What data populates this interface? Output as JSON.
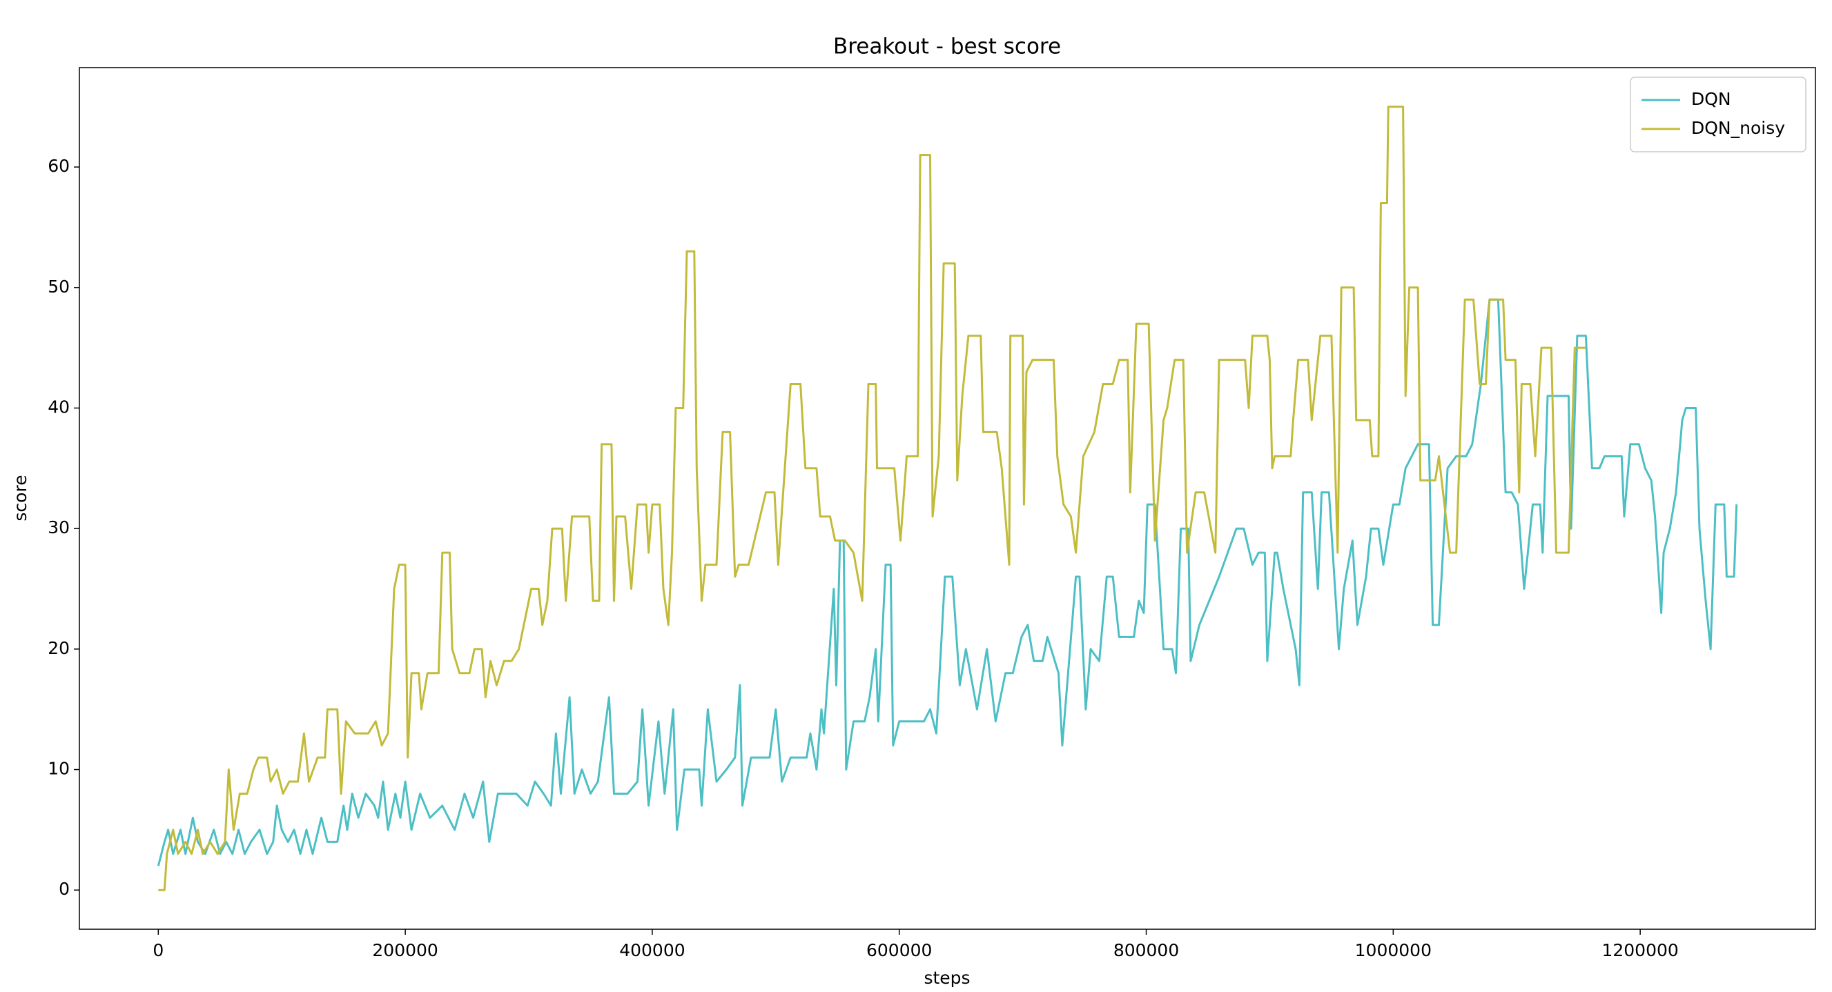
{
  "chart_data": {
    "type": "line",
    "title": "Breakout - best score",
    "xlabel": "steps",
    "ylabel": "score",
    "xlim": [
      -63900,
      1341900
    ],
    "ylim": [
      -3.25,
      68.25
    ],
    "xticks": [
      0,
      200000,
      400000,
      600000,
      800000,
      1000000,
      1200000
    ],
    "yticks": [
      0,
      10,
      20,
      30,
      40,
      50,
      60
    ],
    "legend": "upper right",
    "series": [
      {
        "name": "DQN",
        "color": "#4cbfc5",
        "x": [
          0,
          5000,
          8000,
          12000,
          18000,
          22000,
          28000,
          32000,
          38000,
          45000,
          50000,
          55000,
          60000,
          65000,
          70000,
          75000,
          82000,
          88000,
          93000,
          96000,
          100000,
          105000,
          110000,
          115000,
          120000,
          125000,
          132000,
          137000,
          145000,
          150000,
          153000,
          157000,
          162000,
          168000,
          175000,
          178000,
          182000,
          186000,
          192000,
          196000,
          200000,
          205000,
          212000,
          220000,
          230000,
          240000,
          248000,
          255000,
          263000,
          268000,
          275000,
          290000,
          299000,
          305000,
          312000,
          318000,
          322000,
          326000,
          333000,
          337000,
          343000,
          350000,
          356000,
          365000,
          369000,
          380000,
          388000,
          392000,
          397000,
          405000,
          410000,
          417000,
          420000,
          426000,
          438000,
          440000,
          445000,
          452000,
          460000,
          467000,
          471000,
          473000,
          480000,
          495000,
          500000,
          505000,
          512000,
          525000,
          528000,
          533000,
          537000,
          539000,
          547000,
          549000,
          552000,
          555000,
          557000,
          563000,
          572000,
          576000,
          581000,
          583000,
          589000,
          593000,
          595000,
          600000,
          620000,
          625000,
          630000,
          637000,
          643000,
          649000,
          654000,
          663000,
          671000,
          678000,
          686000,
          692000,
          699000,
          704000,
          709000,
          716000,
          720000,
          729000,
          732000,
          743000,
          746000,
          751000,
          755000,
          762000,
          768000,
          773000,
          778000,
          790000,
          794000,
          798000,
          801000,
          807000,
          814000,
          821000,
          824000,
          828000,
          834000,
          836000,
          843000,
          851000,
          859000,
          866000,
          873000,
          879000,
          886000,
          891000,
          896000,
          898000,
          904000,
          906000,
          911000,
          921000,
          924000,
          927000,
          934000,
          939000,
          942000,
          948000,
          956000,
          960000,
          967000,
          971000,
          978000,
          982000,
          988000,
          992000,
          1000000,
          1005000,
          1010000,
          1020000,
          1029000,
          1032000,
          1037000,
          1044000,
          1051000,
          1059000,
          1064000,
          1071000,
          1078000,
          1085000,
          1091000,
          1096000,
          1101000,
          1106000,
          1113000,
          1119000,
          1121000,
          1125000,
          1142000,
          1144000,
          1149000,
          1156000,
          1161000,
          1167000,
          1171000,
          1185000,
          1187000,
          1192000,
          1199000,
          1204000,
          1209000,
          1212000,
          1217000,
          1219000,
          1224000,
          1229000,
          1234000,
          1237000,
          1245000,
          1248000,
          1253000,
          1257000,
          1261000,
          1268000,
          1270000,
          1276000,
          1278000
        ],
        "values": [
          2,
          4,
          5,
          3,
          5,
          3,
          6,
          4,
          3,
          5,
          3,
          4,
          3,
          5,
          3,
          4,
          5,
          3,
          4,
          7,
          5,
          4,
          5,
          3,
          5,
          3,
          6,
          4,
          4,
          7,
          5,
          8,
          6,
          8,
          7,
          6,
          9,
          5,
          8,
          6,
          9,
          5,
          8,
          6,
          7,
          5,
          8,
          6,
          9,
          4,
          8,
          8,
          7,
          9,
          8,
          7,
          13,
          8,
          16,
          8,
          10,
          8,
          9,
          16,
          8,
          8,
          9,
          15,
          7,
          14,
          8,
          15,
          5,
          10,
          10,
          7,
          15,
          9,
          10,
          11,
          17,
          7,
          11,
          11,
          15,
          9,
          11,
          11,
          13,
          10,
          15,
          13,
          25,
          17,
          29,
          29,
          10,
          14,
          14,
          16,
          20,
          14,
          27,
          27,
          12,
          14,
          14,
          15,
          13,
          26,
          26,
          17,
          20,
          15,
          20,
          14,
          18,
          18,
          21,
          22,
          19,
          19,
          21,
          18,
          12,
          26,
          26,
          15,
          20,
          19,
          26,
          26,
          21,
          21,
          24,
          23,
          32,
          32,
          20,
          20,
          18,
          30,
          30,
          19,
          22,
          24,
          26,
          28,
          30,
          30,
          27,
          28,
          28,
          19,
          28,
          28,
          25,
          20,
          17,
          33,
          33,
          25,
          33,
          33,
          20,
          25,
          29,
          22,
          26,
          30,
          30,
          27,
          32,
          32,
          35,
          37,
          37,
          22,
          22,
          35,
          36,
          36,
          37,
          42,
          49,
          49,
          33,
          33,
          32,
          25,
          32,
          32,
          28,
          41,
          41,
          30,
          46,
          46,
          35,
          35,
          36,
          36,
          31,
          37,
          37,
          35,
          34,
          31,
          23,
          28,
          30,
          33,
          39,
          40,
          40,
          30,
          24,
          20,
          32,
          32,
          26,
          26,
          32
        ]
      },
      {
        "name": "DQN_noisy",
        "color": "#c2bb3a",
        "x": [
          0,
          5000,
          7000,
          12000,
          16000,
          22000,
          27000,
          32000,
          36000,
          42000,
          48000,
          54000,
          57000,
          61000,
          66000,
          72000,
          77000,
          81000,
          88000,
          91000,
          96000,
          101000,
          106000,
          113000,
          118000,
          122000,
          129000,
          135000,
          137000,
          145000,
          148000,
          152000,
          159000,
          170000,
          176000,
          181000,
          186000,
          191000,
          195000,
          200000,
          202000,
          205000,
          211000,
          213000,
          218000,
          227000,
          230000,
          236000,
          238000,
          244000,
          252000,
          256000,
          262000,
          265000,
          269000,
          274000,
          280000,
          286000,
          292000,
          302000,
          308000,
          311000,
          315000,
          319000,
          327000,
          330000,
          335000,
          349000,
          352000,
          357000,
          359000,
          367000,
          369000,
          371000,
          378000,
          383000,
          388000,
          395000,
          397000,
          400000,
          406000,
          409000,
          413000,
          416000,
          419000,
          425000,
          428000,
          434000,
          436000,
          440000,
          443000,
          452000,
          457000,
          463000,
          467000,
          470000,
          478000,
          485000,
          492000,
          499000,
          502000,
          512000,
          520000,
          524000,
          533000,
          536000,
          544000,
          548000,
          556000,
          563000,
          570000,
          575000,
          581000,
          582000,
          596000,
          601000,
          606000,
          615000,
          617000,
          625000,
          627000,
          632000,
          636000,
          645000,
          647000,
          651000,
          656000,
          666000,
          668000,
          679000,
          683000,
          689000,
          690000,
          700000,
          701000,
          703000,
          708000,
          725000,
          728000,
          733000,
          739000,
          743000,
          749000,
          758000,
          765000,
          773000,
          778000,
          785000,
          787000,
          792000,
          802000,
          807000,
          814000,
          817000,
          823000,
          830000,
          833000,
          840000,
          847000,
          856000,
          859000,
          880000,
          883000,
          886000,
          898000,
          900000,
          902000,
          904000,
          917000,
          919000,
          923000,
          931000,
          934000,
          941000,
          950000,
          955000,
          958000,
          968000,
          970000,
          981000,
          983000,
          988000,
          990000,
          995000,
          996000,
          1008000,
          1010000,
          1013000,
          1020000,
          1022000,
          1034000,
          1037000,
          1046000,
          1051000,
          1058000,
          1065000,
          1070000,
          1075000,
          1078000,
          1089000,
          1091000,
          1099000,
          1102000,
          1104000,
          1111000,
          1115000,
          1120000,
          1128000,
          1132000,
          1142000,
          1147000,
          1156000
        ],
        "values": [
          0,
          0,
          3,
          5,
          3,
          4,
          3,
          5,
          3,
          4,
          3,
          4,
          10,
          5,
          8,
          8,
          10,
          11,
          11,
          9,
          10,
          8,
          9,
          9,
          13,
          9,
          11,
          11,
          15,
          15,
          8,
          14,
          13,
          13,
          14,
          12,
          13,
          25,
          27,
          27,
          11,
          18,
          18,
          15,
          18,
          18,
          28,
          28,
          20,
          18,
          18,
          20,
          20,
          16,
          19,
          17,
          19,
          19,
          20,
          25,
          25,
          22,
          24,
          30,
          30,
          24,
          31,
          31,
          24,
          24,
          37,
          37,
          24,
          31,
          31,
          25,
          32,
          32,
          28,
          32,
          32,
          25,
          22,
          28,
          40,
          40,
          53,
          53,
          35,
          24,
          27,
          27,
          38,
          38,
          26,
          27,
          27,
          30,
          33,
          33,
          27,
          42,
          42,
          35,
          35,
          31,
          31,
          29,
          29,
          28,
          24,
          42,
          42,
          35,
          35,
          29,
          36,
          36,
          61,
          61,
          31,
          36,
          52,
          52,
          34,
          41,
          46,
          46,
          38,
          38,
          35,
          27,
          46,
          46,
          32,
          43,
          44,
          44,
          36,
          32,
          31,
          28,
          36,
          38,
          42,
          42,
          44,
          44,
          33,
          47,
          47,
          29,
          39,
          40,
          44,
          44,
          28,
          33,
          33,
          28,
          44,
          44,
          40,
          46,
          46,
          44,
          35,
          36,
          36,
          39,
          44,
          44,
          39,
          46,
          46,
          28,
          50,
          50,
          39,
          39,
          36,
          36,
          57,
          57,
          65,
          65,
          41,
          50,
          50,
          34,
          34,
          36,
          28,
          28,
          49,
          49,
          42,
          42,
          49,
          49,
          44,
          44,
          33,
          42,
          42,
          36,
          45,
          45,
          28,
          28,
          45,
          45
        ]
      }
    ]
  }
}
